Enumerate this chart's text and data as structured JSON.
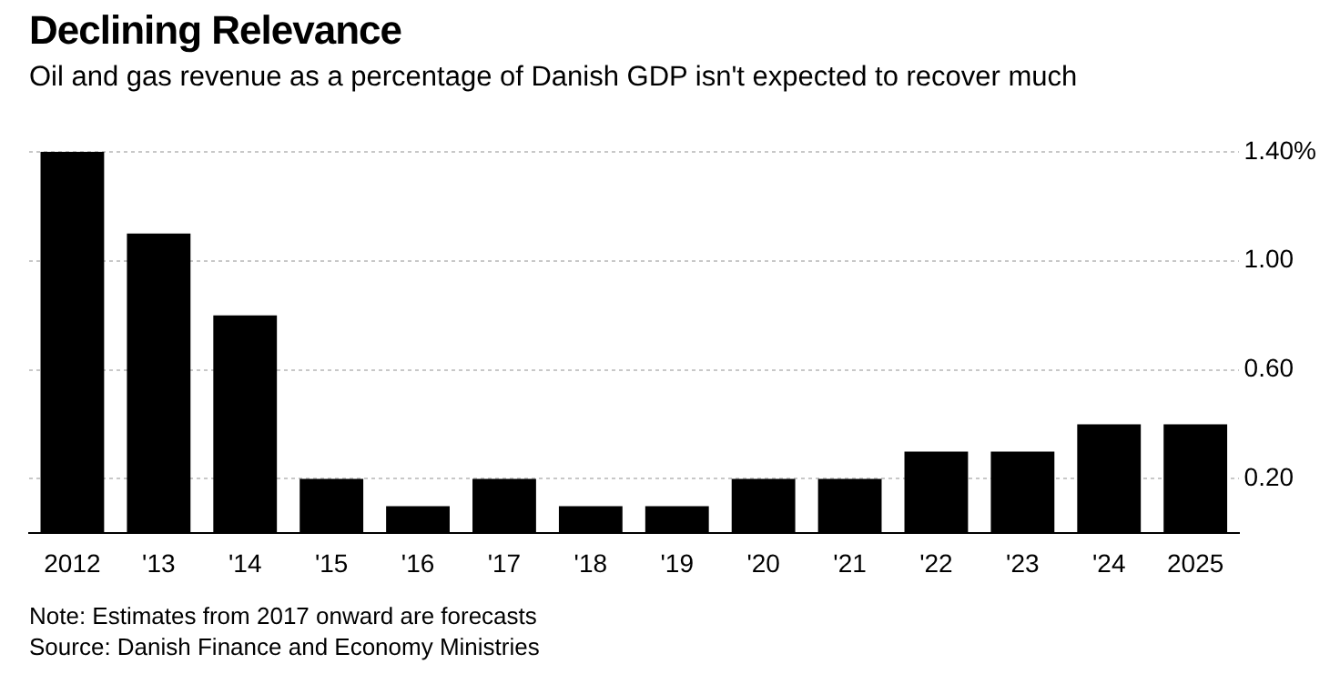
{
  "chart_data": {
    "type": "bar",
    "title": "Declining Relevance",
    "subtitle": "Oil and gas revenue as a percentage of Danish GDP isn't expected to recover much",
    "categories": [
      "2012",
      "'13",
      "'14",
      "'15",
      "'16",
      "'17",
      "'18",
      "'19",
      "'20",
      "'21",
      "'22",
      "'23",
      "'24",
      "2025"
    ],
    "values": [
      1.4,
      1.1,
      0.8,
      0.2,
      0.1,
      0.2,
      0.1,
      0.1,
      0.2,
      0.2,
      0.3,
      0.3,
      0.4,
      0.4
    ],
    "color": "#000000",
    "ylim": [
      0,
      1.4
    ],
    "yticks": [
      {
        "value": 0.2,
        "label": "0.20"
      },
      {
        "value": 0.6,
        "label": "0.60"
      },
      {
        "value": 1.0,
        "label": "1.00"
      },
      {
        "value": 1.4,
        "label": "1.40%"
      }
    ],
    "grid": "y",
    "annotations": [
      "Note: Estimates from 2017 onward are forecasts",
      "Source: Danish Finance and Economy Ministries"
    ]
  }
}
